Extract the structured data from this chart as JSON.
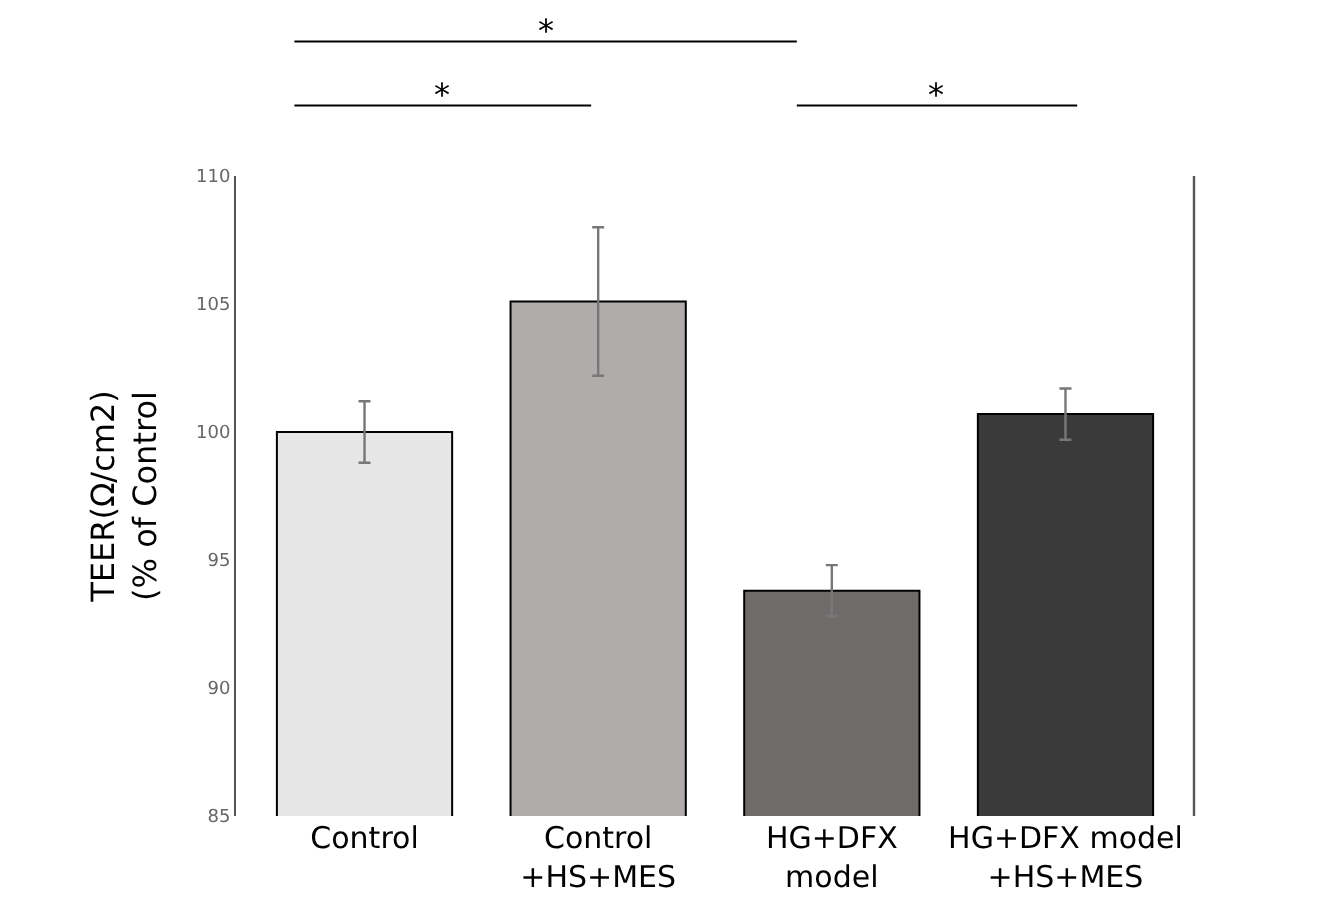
{
  "chart_data": {
    "type": "bar",
    "ylabel": "TEER(Ω/cm2)\n(% of Control",
    "categories": [
      "Control",
      "Control\n+HS+MES",
      "HG+DFX\nmodel",
      "HG+DFX model\n+HS+MES"
    ],
    "values": [
      100,
      105.1,
      93.8,
      100.7
    ],
    "errors": [
      1.2,
      2.9,
      1.0,
      1.0
    ],
    "colors": [
      "#e6e6e6",
      "#b0acac",
      "#706b6b",
      "#3a3a3a"
    ],
    "ylim": [
      85,
      110
    ],
    "yticks": [
      85,
      90,
      95,
      100,
      105,
      110
    ],
    "annotations": [
      "*",
      "*",
      "*"
    ]
  }
}
